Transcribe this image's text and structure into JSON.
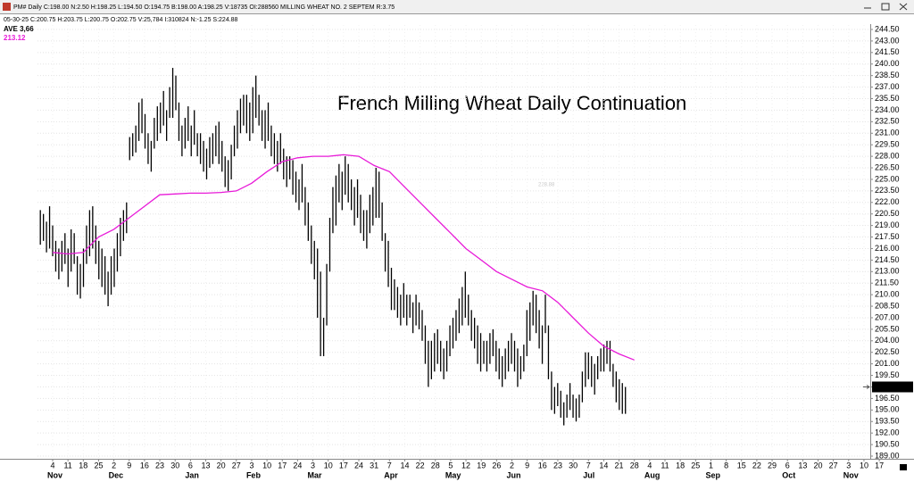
{
  "header": {
    "quote": "PM# Daily C:198.00 N:2.50 H:198.25 L:194.50 O:194.75 B:198.00 A:198.25 V:18735 OI:288560 MILLING WHEAT NO. 2 SEPTEM R:3.75",
    "status": "05-30-25  C:200.75  H:203.75  L:200.75  O:202.75  V:25,784  I:310824  N:-1.25  S:224.88"
  },
  "chart_data": {
    "type": "ohlc",
    "title": "French Milling Wheat Daily Continuation",
    "indicator": {
      "name": "AVE",
      "setting": "3,66",
      "value_label": "213.12",
      "color": "#e81ad8"
    },
    "hover_label": "228.88",
    "last": {
      "value": 198,
      "label": "198.00"
    },
    "color": "#000000",
    "ylim": [
      189,
      244.5
    ],
    "yticks": [
      {
        "value": 189,
        "label": "189.00"
      },
      {
        "value": 190.5,
        "label": "190.50"
      },
      {
        "value": 192,
        "label": "192.00"
      },
      {
        "value": 193.5,
        "label": "193.50"
      },
      {
        "value": 195,
        "label": "195.00"
      },
      {
        "value": 196.5,
        "label": "196.50"
      },
      {
        "value": 198,
        "label": "198.00"
      },
      {
        "value": 199.5,
        "label": "199.50"
      },
      {
        "value": 201,
        "label": "201.00"
      },
      {
        "value": 202.5,
        "label": "202.50"
      },
      {
        "value": 204,
        "label": "204.00"
      },
      {
        "value": 205.5,
        "label": "205.50"
      },
      {
        "value": 207,
        "label": "207.00"
      },
      {
        "value": 208.5,
        "label": "208.50"
      },
      {
        "value": 210,
        "label": "210.00"
      },
      {
        "value": 211.5,
        "label": "211.50"
      },
      {
        "value": 213,
        "label": "213.00"
      },
      {
        "value": 214.5,
        "label": "214.50"
      },
      {
        "value": 216,
        "label": "216.00"
      },
      {
        "value": 217.5,
        "label": "217.50"
      },
      {
        "value": 219,
        "label": "219.00"
      },
      {
        "value": 220.5,
        "label": "220.50"
      },
      {
        "value": 222,
        "label": "222.00"
      },
      {
        "value": 223.5,
        "label": "223.50"
      },
      {
        "value": 225,
        "label": "225.00"
      },
      {
        "value": 226.5,
        "label": "226.50"
      },
      {
        "value": 228,
        "label": "228.00"
      },
      {
        "value": 229.5,
        "label": "229.50"
      },
      {
        "value": 231,
        "label": "231.00"
      },
      {
        "value": 232.5,
        "label": "232.50"
      },
      {
        "value": 234,
        "label": "234.00"
      },
      {
        "value": 235.5,
        "label": "235.50"
      },
      {
        "value": 237,
        "label": "237.00"
      },
      {
        "value": 238.5,
        "label": "238.50"
      },
      {
        "value": 240,
        "label": "240.00"
      },
      {
        "value": 241.5,
        "label": "241.50"
      },
      {
        "value": 243,
        "label": "243.00"
      },
      {
        "value": 244.5,
        "label": "244.50"
      }
    ],
    "x_labels": [
      "4",
      "11",
      "18",
      "25",
      "2",
      "9",
      "16",
      "23",
      "30",
      "6",
      "13",
      "20",
      "27",
      "3",
      "10",
      "17",
      "24",
      "3",
      "10",
      "17",
      "24",
      "31",
      "7",
      "14",
      "22",
      "28",
      "5",
      "12",
      "19",
      "26",
      "2",
      "9",
      "16",
      "23",
      "30",
      "7",
      "14",
      "21",
      "28",
      "4",
      "11",
      "18",
      "25",
      "1",
      "8",
      "15",
      "22",
      "29",
      "6",
      "13",
      "20",
      "27",
      "3",
      "10",
      "17"
    ],
    "months": [
      "Nov",
      "Dec",
      "Jan",
      "Feb",
      "Mar",
      "Apr",
      "May",
      "Jun",
      "Jul",
      "Aug",
      "Sep",
      "Oct",
      "Nov"
    ],
    "grid": true,
    "bars": [
      [
        216.5,
        221
      ],
      [
        217,
        220.5
      ],
      [
        215.5,
        219.5
      ],
      [
        216,
        221.5
      ],
      [
        215,
        219
      ],
      [
        213,
        217
      ],
      [
        212,
        216
      ],
      [
        213,
        217
      ],
      [
        214,
        218
      ],
      [
        211,
        216
      ],
      [
        213,
        218.5
      ],
      [
        214,
        218
      ],
      [
        210,
        215
      ],
      [
        209.5,
        214
      ],
      [
        211,
        216
      ],
      [
        214,
        219
      ],
      [
        215,
        221
      ],
      [
        216,
        221.5
      ],
      [
        214,
        219
      ],
      [
        212,
        217
      ],
      [
        211,
        216
      ],
      [
        210,
        215
      ],
      [
        208.5,
        213
      ],
      [
        210,
        215
      ],
      [
        211,
        216
      ],
      [
        213,
        218
      ],
      [
        215,
        220
      ],
      [
        217,
        221
      ],
      [
        218,
        222
      ],
      [
        227.5,
        230.5
      ],
      [
        228,
        231
      ],
      [
        228.5,
        232
      ],
      [
        230,
        235
      ],
      [
        231,
        235.5
      ],
      [
        229,
        233.5
      ],
      [
        227,
        231
      ],
      [
        226,
        230
      ],
      [
        229,
        233
      ],
      [
        230,
        234.5
      ],
      [
        231,
        235
      ],
      [
        232,
        236.5
      ],
      [
        230,
        234
      ],
      [
        233,
        237
      ],
      [
        233,
        239.5
      ],
      [
        234,
        238.5
      ],
      [
        230,
        235
      ],
      [
        228,
        232
      ],
      [
        229,
        233
      ],
      [
        230,
        234.5
      ],
      [
        228,
        232
      ],
      [
        229.5,
        234
      ],
      [
        228,
        231
      ],
      [
        227,
        231
      ],
      [
        226,
        230
      ],
      [
        225,
        229
      ],
      [
        226.5,
        230.5
      ],
      [
        227,
        231
      ],
      [
        228,
        232
      ],
      [
        227,
        232.5
      ],
      [
        226,
        230
      ],
      [
        224,
        228
      ],
      [
        223.5,
        227.5
      ],
      [
        225,
        229.5
      ],
      [
        228,
        232
      ],
      [
        229,
        234
      ],
      [
        231,
        235.5
      ],
      [
        232,
        236
      ],
      [
        231,
        236
      ],
      [
        230,
        235
      ],
      [
        231,
        237
      ],
      [
        233,
        238.5
      ],
      [
        232,
        236
      ],
      [
        230,
        234
      ],
      [
        229,
        234
      ],
      [
        230,
        235
      ],
      [
        228,
        232
      ],
      [
        227,
        231
      ],
      [
        226,
        230
      ],
      [
        227,
        231
      ],
      [
        225,
        229
      ],
      [
        224,
        228
      ],
      [
        225,
        228
      ],
      [
        223,
        227.5
      ],
      [
        222,
        226
      ],
      [
        221,
        225
      ],
      [
        222,
        227
      ],
      [
        219,
        224
      ],
      [
        217,
        222
      ],
      [
        214,
        219
      ],
      [
        212,
        217
      ],
      [
        207,
        216
      ],
      [
        202,
        213
      ],
      [
        202,
        207
      ],
      [
        206,
        214
      ],
      [
        213,
        220
      ],
      [
        218,
        224
      ],
      [
        219,
        225.5
      ],
      [
        222,
        227
      ],
      [
        221,
        226
      ],
      [
        223,
        228
      ],
      [
        222,
        227
      ],
      [
        221,
        225
      ],
      [
        219,
        224
      ],
      [
        220,
        225
      ],
      [
        218,
        223
      ],
      [
        217,
        221
      ],
      [
        216,
        221
      ],
      [
        218,
        223
      ],
      [
        219,
        224
      ],
      [
        220,
        226.5
      ],
      [
        220,
        226
      ],
      [
        217,
        222
      ],
      [
        213,
        218
      ],
      [
        211,
        217
      ],
      [
        208,
        213.5
      ],
      [
        208,
        212
      ],
      [
        207,
        211
      ],
      [
        206,
        210
      ],
      [
        207,
        211.5
      ],
      [
        206,
        210
      ],
      [
        207,
        210
      ],
      [
        205,
        209
      ],
      [
        206,
        210
      ],
      [
        205.5,
        209
      ],
      [
        204,
        208
      ],
      [
        201,
        206
      ],
      [
        198,
        204
      ],
      [
        199,
        204
      ],
      [
        200,
        205
      ],
      [
        201,
        205.5
      ],
      [
        200,
        204
      ],
      [
        199,
        203
      ],
      [
        200,
        204
      ],
      [
        202,
        206
      ],
      [
        203,
        207
      ],
      [
        204,
        208
      ],
      [
        205,
        209.5
      ],
      [
        206,
        211
      ],
      [
        207,
        213
      ],
      [
        206,
        210
      ],
      [
        204,
        208
      ],
      [
        203,
        207
      ],
      [
        201,
        206
      ],
      [
        200,
        205
      ],
      [
        201,
        204
      ],
      [
        200,
        204
      ],
      [
        201,
        205
      ],
      [
        202,
        205.5
      ],
      [
        200,
        204
      ],
      [
        199,
        203
      ],
      [
        198,
        202
      ],
      [
        199,
        203
      ],
      [
        200,
        204
      ],
      [
        201,
        205
      ],
      [
        200,
        204
      ],
      [
        198,
        203
      ],
      [
        199,
        202
      ],
      [
        200,
        203.5
      ],
      [
        202,
        208
      ],
      [
        204,
        209
      ],
      [
        206,
        210.5
      ],
      [
        205,
        210
      ],
      [
        203,
        208
      ],
      [
        201,
        206
      ],
      [
        205,
        210
      ],
      [
        199,
        206
      ],
      [
        195,
        200
      ],
      [
        194.5,
        198
      ],
      [
        195.5,
        198.5
      ],
      [
        194,
        197.5
      ],
      [
        193,
        196
      ],
      [
        194,
        197
      ],
      [
        195,
        198.5
      ],
      [
        194,
        197
      ],
      [
        193.5,
        196.5
      ],
      [
        194,
        197
      ],
      [
        196,
        200
      ],
      [
        198,
        202.5
      ],
      [
        199,
        202.5
      ],
      [
        198,
        202
      ],
      [
        197,
        201
      ],
      [
        199,
        202
      ],
      [
        200,
        203
      ],
      [
        200,
        203.5
      ],
      [
        201,
        204
      ],
      [
        200,
        204
      ],
      [
        198,
        201
      ],
      [
        196,
        200
      ],
      [
        195,
        199
      ],
      [
        194.5,
        198.5
      ],
      [
        194.5,
        198
      ]
    ],
    "average": [
      215.5,
      215.3,
      215.5,
      217.5,
      218.5,
      220,
      221.5,
      223,
      223.1,
      223.2,
      223.2,
      223.3,
      223.5,
      224.5,
      226,
      227.3,
      227.8,
      228,
      228,
      228.2,
      228,
      226.8,
      226,
      224,
      222,
      220,
      218,
      216,
      214.5,
      213,
      212,
      211,
      210.5,
      209,
      207,
      205,
      203.3,
      202.3,
      201.5
    ]
  }
}
